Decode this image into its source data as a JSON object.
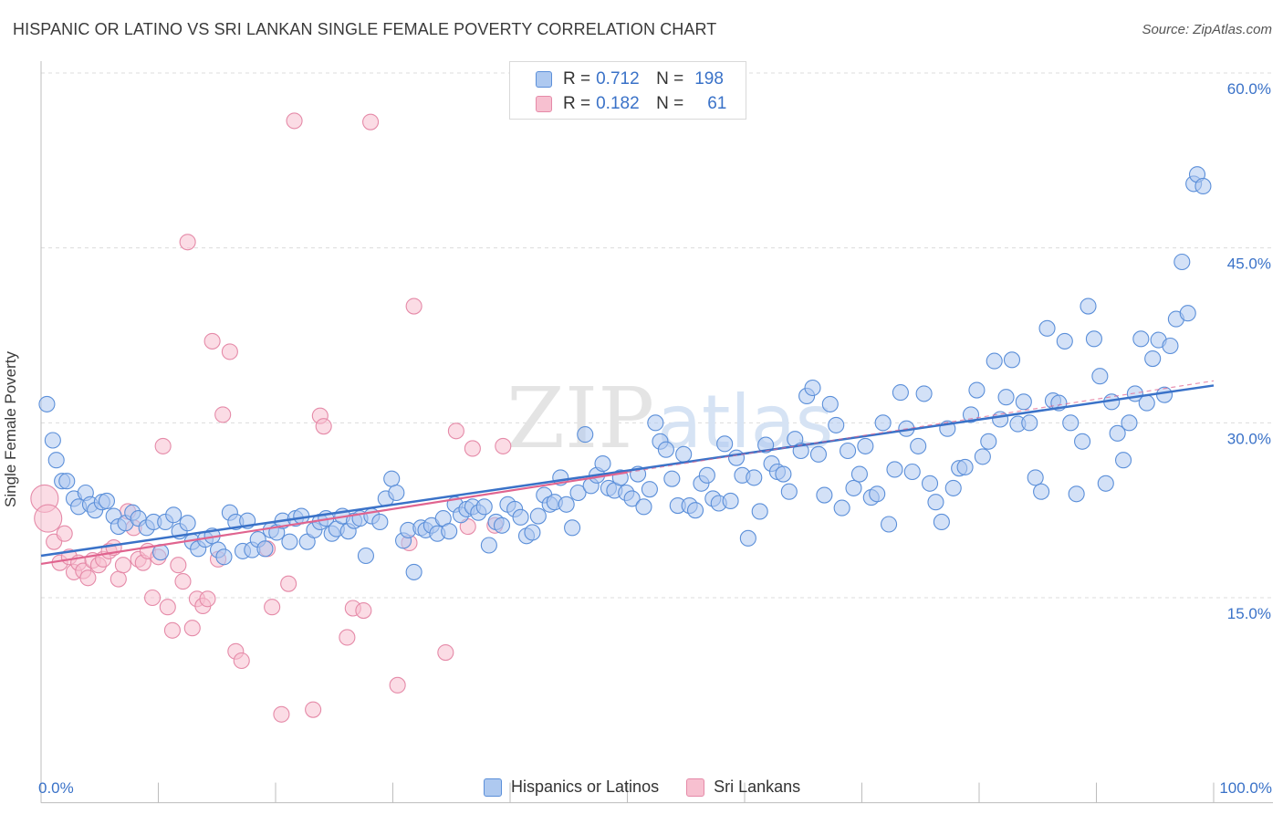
{
  "title": "HISPANIC OR LATINO VS SRI LANKAN SINGLE FEMALE POVERTY CORRELATION CHART",
  "source": "Source: ZipAtlas.com",
  "watermark": {
    "zip": "ZIP",
    "atlas": "atlas"
  },
  "legend_top": [
    {
      "r_label": "R =",
      "r_value": "0.712",
      "n_label": "N =",
      "n_value": "198"
    },
    {
      "r_label": "R =",
      "r_value": "0.182",
      "n_label": "N =",
      "n_value": "61"
    }
  ],
  "legend_bottom": [
    "Hispanics or Latinos",
    "Sri Lankans"
  ],
  "colors": {
    "blue_fill": "#aec9f0",
    "blue_stroke": "#5b8fd9",
    "blue_line": "#3a72c8",
    "pink_fill": "#f7c0d0",
    "pink_stroke": "#e58aa8",
    "pink_line": "#e0648f",
    "axis_text": "#3a72c8",
    "grid": "#dcdcdc"
  },
  "chart_data": {
    "type": "scatter",
    "title": "HISPANIC OR LATINO VS SRI LANKAN SINGLE FEMALE POVERTY CORRELATION CHART",
    "xlabel": "",
    "ylabel": "Single Female Poverty",
    "xlim": [
      0,
      100
    ],
    "ylim": [
      0,
      63
    ],
    "x_tick_labels": [
      "0.0%",
      "100.0%"
    ],
    "y_ticks": [
      15,
      30,
      45,
      60
    ],
    "y_tick_labels": [
      "15.0%",
      "30.0%",
      "45.0%",
      "60.0%"
    ],
    "series": [
      {
        "name": "Hispanics or Latinos",
        "r": 0.712,
        "n": 198,
        "trend": {
          "x": [
            0,
            100
          ],
          "y": [
            18.6,
            33.2
          ]
        },
        "points": [
          [
            0.5,
            31.6
          ],
          [
            1,
            28.5
          ],
          [
            1.3,
            26.8
          ],
          [
            1.8,
            25
          ],
          [
            2.2,
            25
          ],
          [
            2.8,
            23.5
          ],
          [
            3.2,
            22.8
          ],
          [
            3.8,
            24
          ],
          [
            4.2,
            23
          ],
          [
            4.6,
            22.5
          ],
          [
            5.2,
            23.2
          ],
          [
            5.6,
            23.3
          ],
          [
            6.2,
            22
          ],
          [
            6.6,
            21.1
          ],
          [
            7.2,
            21.4
          ],
          [
            7.8,
            22.3
          ],
          [
            8.3,
            21.8
          ],
          [
            9,
            21
          ],
          [
            9.6,
            21.5
          ],
          [
            10.2,
            18.9
          ],
          [
            10.6,
            21.5
          ],
          [
            11.3,
            22.1
          ],
          [
            11.8,
            20.7
          ],
          [
            12.5,
            21.4
          ],
          [
            12.9,
            19.8
          ],
          [
            13.4,
            19.2
          ],
          [
            14,
            20
          ],
          [
            14.6,
            20.3
          ],
          [
            15.1,
            19.1
          ],
          [
            15.6,
            18.5
          ],
          [
            16.1,
            22.3
          ],
          [
            16.6,
            21.5
          ],
          [
            17.2,
            19
          ],
          [
            17.6,
            21.6
          ],
          [
            18,
            19.1
          ],
          [
            18.5,
            20
          ],
          [
            19.1,
            19.2
          ],
          [
            19.6,
            20.8
          ],
          [
            20.1,
            20.6
          ],
          [
            20.6,
            21.6
          ],
          [
            21.2,
            19.8
          ],
          [
            21.7,
            21.8
          ],
          [
            22.2,
            22
          ],
          [
            22.7,
            19.8
          ],
          [
            23.3,
            20.8
          ],
          [
            23.8,
            21.5
          ],
          [
            24.3,
            21.8
          ],
          [
            24.8,
            20.5
          ],
          [
            25.2,
            20.9
          ],
          [
            25.7,
            22
          ],
          [
            26.2,
            20.7
          ],
          [
            26.7,
            21.6
          ],
          [
            27.2,
            21.8
          ],
          [
            27.7,
            18.6
          ],
          [
            28.2,
            22
          ],
          [
            28.9,
            21.5
          ],
          [
            29.4,
            23.5
          ],
          [
            29.9,
            25.2
          ],
          [
            30.3,
            24
          ],
          [
            30.9,
            19.9
          ],
          [
            31.3,
            20.8
          ],
          [
            31.8,
            17.2
          ],
          [
            32.4,
            21
          ],
          [
            32.8,
            20.8
          ],
          [
            33.3,
            21.2
          ],
          [
            33.8,
            20.5
          ],
          [
            34.3,
            21.8
          ],
          [
            34.8,
            20.7
          ],
          [
            35.3,
            23
          ],
          [
            35.8,
            22.1
          ],
          [
            36.3,
            22.6
          ],
          [
            36.8,
            22.8
          ],
          [
            37.3,
            22.3
          ],
          [
            37.8,
            22.8
          ],
          [
            38.2,
            19.5
          ],
          [
            38.8,
            21.5
          ],
          [
            39.3,
            21.2
          ],
          [
            39.8,
            23
          ],
          [
            40.4,
            22.6
          ],
          [
            40.9,
            21.9
          ],
          [
            41.4,
            20.3
          ],
          [
            41.9,
            20.6
          ],
          [
            42.4,
            22
          ],
          [
            42.9,
            23.8
          ],
          [
            43.4,
            23
          ],
          [
            43.8,
            23.2
          ],
          [
            44.3,
            25.3
          ],
          [
            44.8,
            23
          ],
          [
            45.3,
            21
          ],
          [
            45.8,
            24
          ],
          [
            46.4,
            29
          ],
          [
            46.9,
            24.6
          ],
          [
            47.4,
            25.5
          ],
          [
            47.9,
            26.5
          ],
          [
            48.4,
            24.4
          ],
          [
            48.9,
            24.2
          ],
          [
            49.4,
            25.3
          ],
          [
            49.9,
            24
          ],
          [
            50.4,
            23.5
          ],
          [
            50.9,
            25.6
          ],
          [
            51.4,
            22.8
          ],
          [
            51.9,
            24.3
          ],
          [
            52.4,
            30
          ],
          [
            52.8,
            28.4
          ],
          [
            53.3,
            27.7
          ],
          [
            53.8,
            25.2
          ],
          [
            54.3,
            22.9
          ],
          [
            54.8,
            27.3
          ],
          [
            55.3,
            22.9
          ],
          [
            55.8,
            22.5
          ],
          [
            56.3,
            24.8
          ],
          [
            56.8,
            25.5
          ],
          [
            57.3,
            23.5
          ],
          [
            57.8,
            23.1
          ],
          [
            58.3,
            28.2
          ],
          [
            58.8,
            23.3
          ],
          [
            59.3,
            27
          ],
          [
            59.8,
            25.5
          ],
          [
            60.3,
            20.1
          ],
          [
            60.8,
            25.3
          ],
          [
            61.3,
            22.4
          ],
          [
            61.8,
            28.1
          ],
          [
            62.3,
            26.5
          ],
          [
            62.8,
            25.8
          ],
          [
            63.3,
            25.6
          ],
          [
            63.8,
            24.1
          ],
          [
            64.3,
            28.6
          ],
          [
            64.8,
            27.6
          ],
          [
            65.3,
            32.3
          ],
          [
            65.8,
            33
          ],
          [
            66.3,
            27.3
          ],
          [
            66.8,
            23.8
          ],
          [
            67.3,
            31.6
          ],
          [
            67.8,
            29.8
          ],
          [
            68.3,
            22.7
          ],
          [
            68.8,
            27.6
          ],
          [
            69.3,
            24.4
          ],
          [
            69.8,
            25.6
          ],
          [
            70.3,
            28
          ],
          [
            70.8,
            23.6
          ],
          [
            71.3,
            23.9
          ],
          [
            71.8,
            30
          ],
          [
            72.3,
            21.3
          ],
          [
            72.8,
            26
          ],
          [
            73.3,
            32.6
          ],
          [
            73.8,
            29.5
          ],
          [
            74.3,
            25.8
          ],
          [
            74.8,
            28
          ],
          [
            75.3,
            32.5
          ],
          [
            75.8,
            24.8
          ],
          [
            76.3,
            23.2
          ],
          [
            76.8,
            21.5
          ],
          [
            77.3,
            29.5
          ],
          [
            77.8,
            24.4
          ],
          [
            78.3,
            26.1
          ],
          [
            78.8,
            26.2
          ],
          [
            79.3,
            30.7
          ],
          [
            79.8,
            32.8
          ],
          [
            80.3,
            27.1
          ],
          [
            80.8,
            28.4
          ],
          [
            81.3,
            35.3
          ],
          [
            81.8,
            30.3
          ],
          [
            82.3,
            32.2
          ],
          [
            82.8,
            35.4
          ],
          [
            83.3,
            29.9
          ],
          [
            83.8,
            31.8
          ],
          [
            84.3,
            30
          ],
          [
            84.8,
            25.3
          ],
          [
            85.3,
            24.1
          ],
          [
            85.8,
            38.1
          ],
          [
            86.3,
            31.9
          ],
          [
            86.8,
            31.7
          ],
          [
            87.3,
            37
          ],
          [
            87.8,
            30
          ],
          [
            88.3,
            23.9
          ],
          [
            88.8,
            28.4
          ],
          [
            89.3,
            40
          ],
          [
            89.8,
            37.2
          ],
          [
            90.3,
            34
          ],
          [
            90.8,
            24.8
          ],
          [
            91.3,
            31.8
          ],
          [
            91.8,
            29.1
          ],
          [
            92.3,
            26.8
          ],
          [
            92.8,
            30
          ],
          [
            93.3,
            32.5
          ],
          [
            93.8,
            37.2
          ],
          [
            94.3,
            31.7
          ],
          [
            94.8,
            35.5
          ],
          [
            95.3,
            37.1
          ],
          [
            95.8,
            32.4
          ],
          [
            96.3,
            36.6
          ],
          [
            96.8,
            38.9
          ],
          [
            97.3,
            43.8
          ],
          [
            97.8,
            39.4
          ],
          [
            98.3,
            50.5
          ],
          [
            98.6,
            51.3
          ],
          [
            99.1,
            50.3
          ]
        ]
      },
      {
        "name": "Sri Lankans",
        "r": 0.182,
        "n": 61,
        "trend": {
          "x": [
            0,
            100
          ],
          "y": [
            17.9,
            33.6
          ]
        },
        "points": [
          [
            0.3,
            23.5
          ],
          [
            0.6,
            21.8
          ],
          [
            1.1,
            19.8
          ],
          [
            1.6,
            18
          ],
          [
            2,
            20.5
          ],
          [
            2.4,
            18.5
          ],
          [
            2.8,
            17.2
          ],
          [
            3.2,
            18
          ],
          [
            3.6,
            17.3
          ],
          [
            4,
            16.7
          ],
          [
            4.4,
            18.2
          ],
          [
            4.9,
            17.8
          ],
          [
            5.3,
            18.3
          ],
          [
            5.8,
            19
          ],
          [
            6.2,
            19.3
          ],
          [
            6.6,
            16.6
          ],
          [
            7,
            17.8
          ],
          [
            7.4,
            22.4
          ],
          [
            7.9,
            21
          ],
          [
            8.3,
            18.3
          ],
          [
            8.7,
            18
          ],
          [
            9.1,
            19
          ],
          [
            9.5,
            15
          ],
          [
            10,
            18.5
          ],
          [
            10.4,
            28
          ],
          [
            10.8,
            14.2
          ],
          [
            11.2,
            12.2
          ],
          [
            11.7,
            17.8
          ],
          [
            12.1,
            16.4
          ],
          [
            12.5,
            45.5
          ],
          [
            12.9,
            12.4
          ],
          [
            13.3,
            14.9
          ],
          [
            13.8,
            14.3
          ],
          [
            14.2,
            14.9
          ],
          [
            14.6,
            37
          ],
          [
            15.1,
            18.3
          ],
          [
            15.5,
            30.7
          ],
          [
            16.1,
            36.1
          ],
          [
            16.6,
            10.4
          ],
          [
            17.1,
            9.6
          ],
          [
            19.3,
            19.2
          ],
          [
            19.7,
            14.2
          ],
          [
            20.5,
            5
          ],
          [
            21.1,
            16.2
          ],
          [
            21.6,
            55.9
          ],
          [
            23.2,
            5.4
          ],
          [
            23.8,
            30.6
          ],
          [
            24.1,
            29.7
          ],
          [
            26.1,
            11.6
          ],
          [
            26.6,
            14.1
          ],
          [
            27.5,
            13.9
          ],
          [
            28.1,
            55.8
          ],
          [
            30.4,
            7.5
          ],
          [
            31.4,
            19.7
          ],
          [
            31.8,
            40
          ],
          [
            34.5,
            10.3
          ],
          [
            35.4,
            29.3
          ],
          [
            36.4,
            21.1
          ],
          [
            36.8,
            27.8
          ],
          [
            38.7,
            21.2
          ],
          [
            39.4,
            28
          ]
        ]
      }
    ]
  }
}
